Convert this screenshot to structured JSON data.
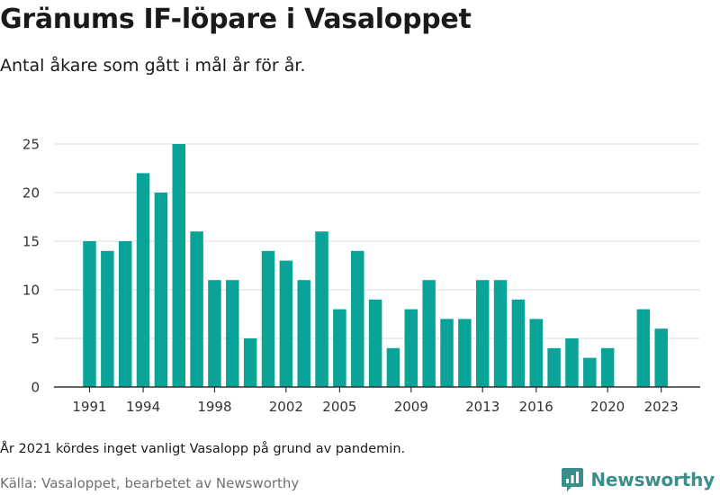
{
  "header": {
    "title": "Gränums IF-löpare i Vasaloppet",
    "subtitle": "Antal åkare som gått i mål år för år."
  },
  "footer": {
    "note": "År 2021 kördes inget vanligt Vasalopp på grund av pandemin.",
    "source": "Källa: Vasaloppet, bearbetet av Newsworthy",
    "logo_text": "Newsworthy"
  },
  "colors": {
    "bar": "#0aa398",
    "grid": "#dddddd",
    "axis": "#333333",
    "brand": "#3a8f8a"
  },
  "chart_data": {
    "type": "bar",
    "categories": [
      "1991",
      "1992",
      "1993",
      "1994",
      "1995",
      "1996",
      "1997",
      "1998",
      "1999",
      "2000",
      "2001",
      "2002",
      "2003",
      "2004",
      "2005",
      "2006",
      "2007",
      "2008",
      "2009",
      "2010",
      "2011",
      "2012",
      "2013",
      "2014",
      "2015",
      "2016",
      "2017",
      "2018",
      "2019",
      "2020",
      "2021",
      "2022",
      "2023"
    ],
    "values": [
      15,
      14,
      15,
      22,
      20,
      25,
      16,
      11,
      11,
      5,
      14,
      13,
      11,
      16,
      8,
      14,
      9,
      4,
      8,
      11,
      7,
      7,
      11,
      11,
      9,
      7,
      4,
      5,
      3,
      4,
      0,
      8,
      6
    ],
    "x_tick_labels": [
      "1991",
      "1994",
      "1998",
      "2002",
      "2005",
      "2009",
      "2013",
      "2016",
      "2020",
      "2023"
    ],
    "y_ticks": [
      0,
      5,
      10,
      15,
      20,
      25
    ],
    "ylim": [
      0,
      25
    ],
    "grid": "horizontal",
    "xlabel": "",
    "ylabel": ""
  }
}
